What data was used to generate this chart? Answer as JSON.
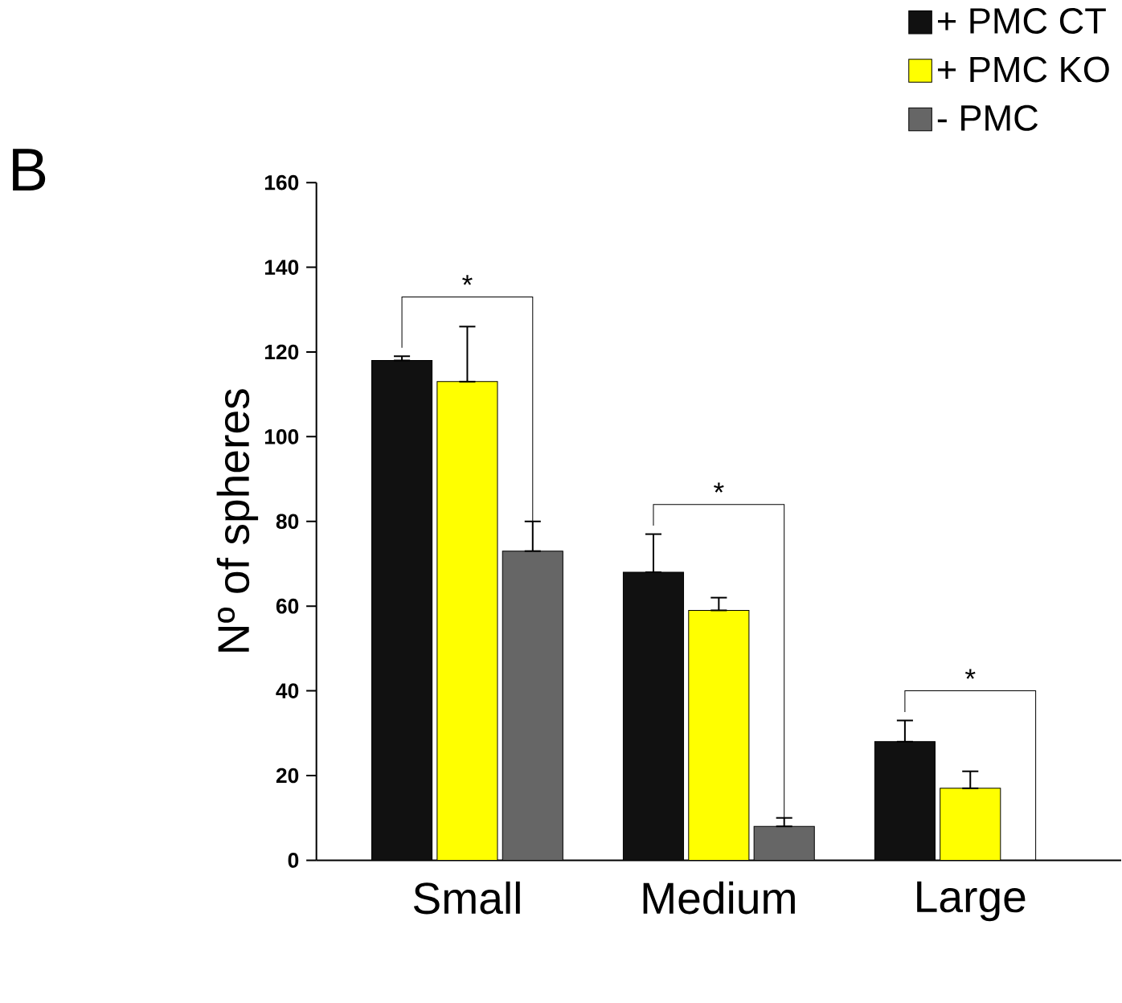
{
  "chart_data": {
    "type": "bar",
    "ylabel": "Nº of spheres",
    "categories": [
      "Small",
      "Medium",
      "Large"
    ],
    "series": [
      {
        "name": "+ PMC CT",
        "color": "#111111",
        "values": [
          118,
          68,
          28
        ],
        "errors": [
          [
            118,
            119
          ],
          [
            68,
            77
          ],
          [
            28,
            33
          ]
        ]
      },
      {
        "name": "+ PMC KO",
        "color": "#ffff00",
        "values": [
          113,
          59,
          17
        ],
        "errors": [
          [
            113,
            126
          ],
          [
            59,
            62
          ],
          [
            17,
            21
          ]
        ]
      },
      {
        "name": "-  PMC",
        "color": "#666666",
        "values": [
          73,
          8,
          null
        ],
        "errors": [
          [
            73,
            80
          ],
          [
            8,
            10
          ],
          null
        ]
      }
    ],
    "ylim": [
      0,
      160
    ],
    "yticks": [
      0,
      20,
      40,
      60,
      80,
      100,
      120,
      140,
      160
    ],
    "grid": false,
    "legend": "top right",
    "annotations": [
      "B",
      "*",
      "*",
      "*"
    ]
  }
}
